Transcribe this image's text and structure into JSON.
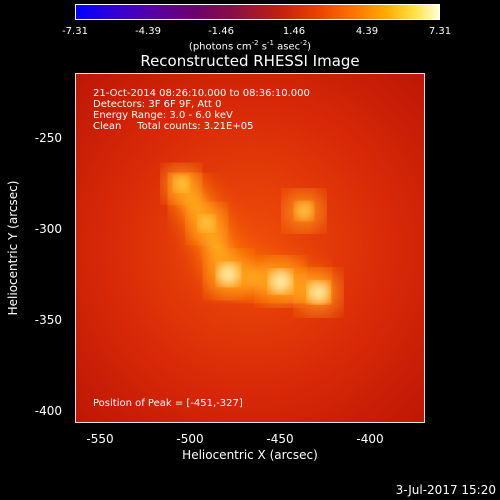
{
  "colorbar": {
    "ticks": [
      "-7.31",
      "-4.39",
      "-1.46",
      "1.46",
      "4.39",
      "7.31"
    ],
    "units_main": "(photons cm",
    "units_exp1": "-2",
    "units_mid": " s",
    "units_exp2": "-1",
    "units_mid2": " asec",
    "units_exp3": "-2",
    "units_end": ")"
  },
  "chart_data": {
    "type": "heatmap",
    "title": "Reconstructed RHESSI Image",
    "xlabel": "Heliocentric X (arcsec)",
    "ylabel": "Heliocentric Y (arcsec)",
    "xlim": [
      -565,
      -371
    ],
    "ylim": [
      -405,
      -212
    ],
    "xticks": [
      -550,
      -500,
      -450,
      -400
    ],
    "yticks": [
      -250,
      -300,
      -350,
      -400
    ],
    "colorbar_range": [
      -7.31,
      7.31
    ],
    "peak": [
      -451,
      -327
    ],
    "sources": [
      {
        "x": -506,
        "y": -273,
        "intensity": 0.55
      },
      {
        "x": -492,
        "y": -295,
        "intensity": 0.6
      },
      {
        "x": -480,
        "y": -323,
        "intensity": 0.95
      },
      {
        "x": -451,
        "y": -327,
        "intensity": 1.0
      },
      {
        "x": -430,
        "y": -333,
        "intensity": 0.9
      },
      {
        "x": -438,
        "y": -288,
        "intensity": 0.7
      }
    ]
  },
  "info": {
    "line1": "21-Oct-2014 08:26:10.000 to 08:36:10.000",
    "line2": "Detectors: 3F 6F 9F, Att 0",
    "line3": "Energy Range: 3.0 - 6.0 keV",
    "line4": "Clean     Total counts: 3.21E+05",
    "peak": "Position of Peak = [-451,-327]"
  },
  "xticks": [
    "-550",
    "-500",
    "-450",
    "-400"
  ],
  "yticks": [
    "-250",
    "-300",
    "-350",
    "-400"
  ],
  "timestamp": "3-Jul-2017 15:20"
}
